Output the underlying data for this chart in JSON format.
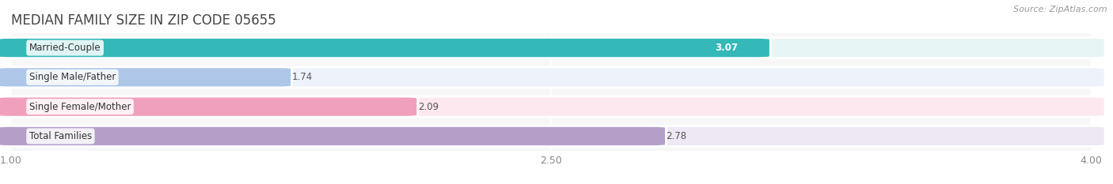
{
  "title": "MEDIAN FAMILY SIZE IN ZIP CODE 05655",
  "source": "Source: ZipAtlas.com",
  "categories": [
    "Married-Couple",
    "Single Male/Father",
    "Single Female/Mother",
    "Total Families"
  ],
  "values": [
    3.07,
    1.74,
    2.09,
    2.78
  ],
  "bar_colors": [
    "#35b8b8",
    "#aec6e8",
    "#f0a0bc",
    "#b59fc8"
  ],
  "bar_bg_colors": [
    "#e8f5f5",
    "#eef3fb",
    "#fde8ef",
    "#ede8f4"
  ],
  "value_inside": [
    true,
    false,
    false,
    false
  ],
  "value_colors_inside": [
    "#ffffff",
    "#555555",
    "#555555",
    "#555555"
  ],
  "xlim": [
    1.0,
    4.0
  ],
  "xticks": [
    1.0,
    2.5,
    4.0
  ],
  "xtick_labels": [
    "1.00",
    "2.50",
    "4.00"
  ],
  "bar_height": 0.62,
  "bar_gap": 0.38,
  "figsize": [
    14.06,
    2.33
  ],
  "dpi": 100,
  "title_fontsize": 12,
  "source_fontsize": 8,
  "label_fontsize": 8.5,
  "value_fontsize": 8.5,
  "tick_fontsize": 9,
  "background_color": "#ffffff",
  "plot_bg_color": "#f7f7f7"
}
